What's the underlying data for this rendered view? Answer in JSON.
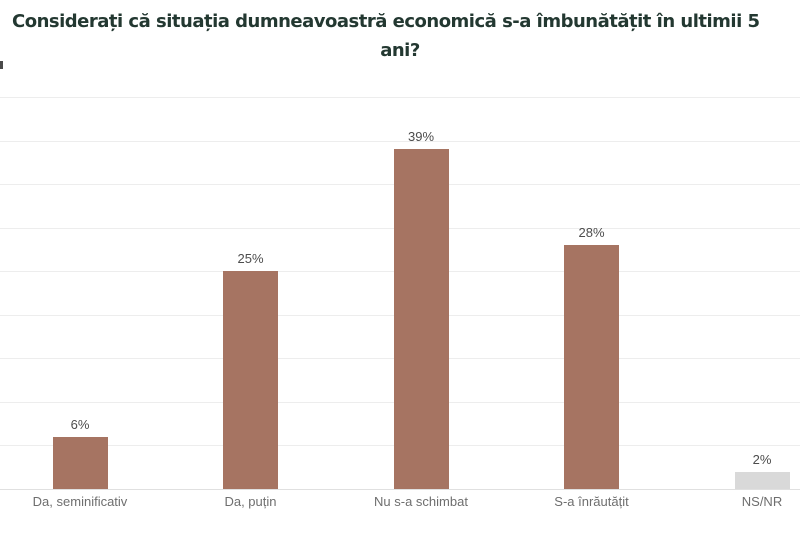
{
  "title": {
    "line1": "Considerați că situația dumneavoastră economică s-a îmbunătățit în ultimii 5",
    "line2": "ani?"
  },
  "chart_data": {
    "type": "bar",
    "title": "Considerați că situația dumneavoastră economică s-a îmbunătățit în ultimii 5 ani?",
    "categories": [
      "Da, seminificativ",
      "Da, puțin",
      "Nu s-a schimbat",
      "S-a înrăutățit",
      "NS/NR"
    ],
    "values": [
      6,
      25,
      39,
      28,
      2
    ],
    "value_labels": [
      "6%",
      "25%",
      "39%",
      "28%",
      "2%"
    ],
    "bar_colors": [
      "#a67462",
      "#a67462",
      "#a67462",
      "#a67462",
      "#d9d9d9"
    ],
    "xlabel": "",
    "ylabel": "",
    "ylim": [
      0,
      45
    ],
    "gridline_step": 5,
    "grid": true,
    "legend": false,
    "value_label_color": "#4c4c4c",
    "category_label_color": "#6e6e6e",
    "title_color": "#233831",
    "background_color": "#ffffff"
  }
}
